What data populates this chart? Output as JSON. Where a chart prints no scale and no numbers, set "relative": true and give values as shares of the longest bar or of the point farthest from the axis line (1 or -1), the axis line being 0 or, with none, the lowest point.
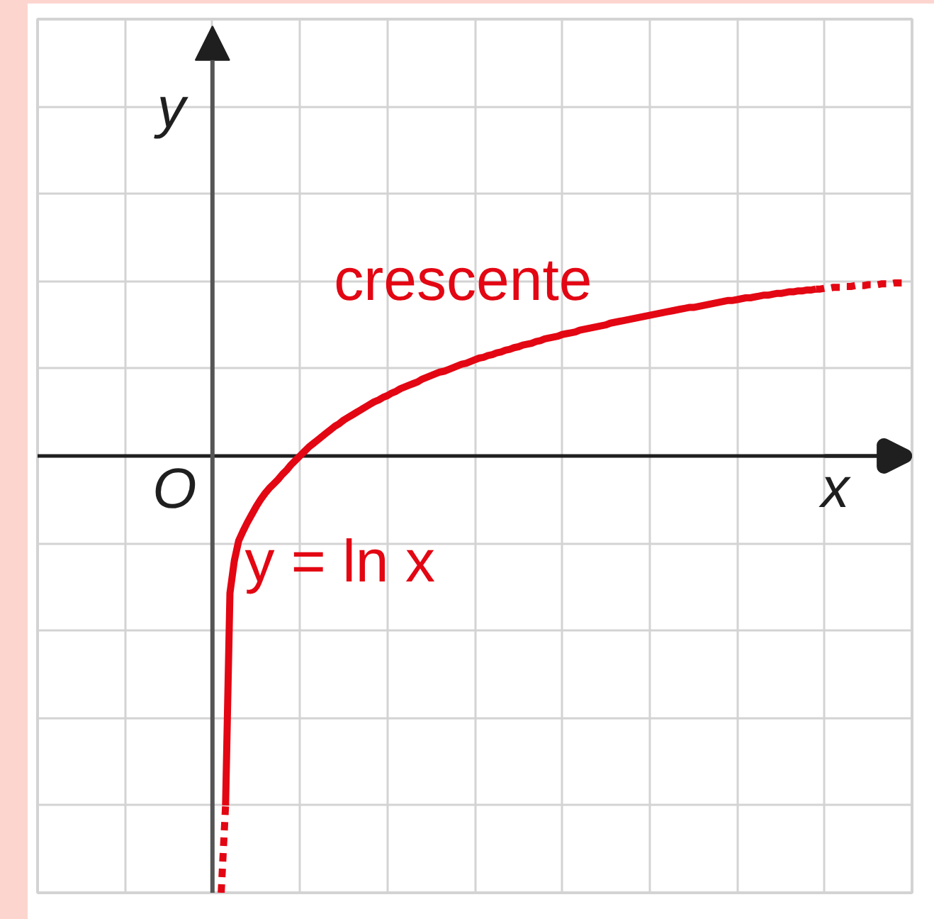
{
  "chart_data": {
    "type": "line",
    "relative": true,
    "grid": true,
    "xlabel": "x",
    "ylabel": "y",
    "annotations": [
      "crescente",
      "O"
    ],
    "categories": [
      null,
      null,
      null,
      null,
      null,
      null,
      null,
      null,
      null,
      null,
      null,
      null,
      null,
      null,
      null,
      null,
      null,
      null,
      null,
      null,
      null,
      null,
      null,
      null,
      null,
      null,
      null,
      null,
      null,
      null,
      null,
      null,
      null,
      null,
      null,
      null,
      null,
      null,
      null,
      null,
      null,
      null,
      null,
      null,
      null,
      null,
      null,
      null,
      null,
      null,
      null,
      null,
      null,
      null,
      null,
      null,
      null,
      null,
      null,
      null,
      null,
      null,
      null,
      null,
      null,
      null,
      null,
      null,
      null,
      null,
      null,
      null,
      null,
      null,
      null,
      null,
      null,
      null,
      null,
      null,
      null,
      null,
      null,
      null,
      null,
      null,
      null,
      null,
      null,
      null,
      null,
      null,
      null,
      null,
      null,
      null,
      null,
      null,
      null,
      null,
      null,
      null,
      null,
      null,
      null,
      null,
      null,
      null,
      null,
      null,
      null,
      null,
      null,
      null,
      null,
      null,
      null,
      null,
      null,
      null,
      null,
      null,
      null,
      null,
      null,
      null,
      null,
      null,
      null,
      null,
      null,
      null,
      null,
      null,
      null,
      null,
      null,
      null,
      null,
      null,
      null,
      null,
      null,
      null,
      null,
      null,
      null,
      null,
      null,
      null,
      null,
      null,
      null,
      null,
      null,
      null,
      null
    ],
    "series": [
      {
        "name": "y = ln x",
        "color": "#e30613",
        "line_style": "solid",
        "values": [
          null,
          -0.8,
          -0.314,
          -0.24,
          -0.194,
          -0.172,
          -0.152,
          -0.134,
          -0.116,
          -0.1,
          -0.086,
          -0.074,
          -0.064,
          -0.054,
          -0.042,
          -0.032,
          -0.02,
          -0.01,
          0,
          0.01,
          0.02,
          0.028,
          0.036,
          0.044,
          0.052,
          0.06,
          0.068,
          0.074,
          0.082,
          0.088,
          0.094,
          0.1,
          0.106,
          0.112,
          0.118,
          0.124,
          0.128,
          0.134,
          0.138,
          0.144,
          0.148,
          0.154,
          0.158,
          0.162,
          0.166,
          0.17,
          0.176,
          0.18,
          0.184,
          0.188,
          0.192,
          0.194,
          0.198,
          0.202,
          0.206,
          0.21,
          0.212,
          0.216,
          0.22,
          0.224,
          0.226,
          0.23,
          0.232,
          0.236,
          0.238,
          0.242,
          0.244,
          0.248,
          0.25,
          0.254,
          0.256,
          0.258,
          0.262,
          0.264,
          0.268,
          0.27,
          0.272,
          0.274,
          0.278,
          0.28,
          0.282,
          0.284,
          0.288,
          0.29,
          0.292,
          0.294,
          0.296,
          0.298,
          0.3,
          0.304,
          0.306,
          0.308,
          0.31,
          0.312,
          0.314,
          0.316,
          0.318,
          0.32,
          0.322,
          0.324,
          0.326,
          0.328,
          0.33,
          0.332,
          0.334,
          0.336,
          0.338,
          0.34,
          0.34,
          0.342,
          0.344,
          0.346,
          0.348,
          0.35,
          0.352,
          0.354,
          0.356,
          0.356,
          0.358,
          0.36,
          0.362,
          0.362,
          0.364,
          0.366,
          0.368,
          0.368,
          0.37,
          0.372,
          0.372,
          0.374,
          0.376,
          0.376,
          0.378,
          0.378,
          0.38,
          0.38,
          0.382,
          null,
          null,
          null,
          null,
          null,
          null,
          null,
          null,
          null,
          null,
          null,
          null,
          null,
          null,
          null,
          null,
          null,
          null,
          null,
          null
        ]
      },
      {
        "color": "#e30613",
        "line_style": "dotted",
        "values": [
          -1,
          -0.8,
          null,
          null,
          null,
          null,
          null,
          null,
          null,
          null,
          null,
          null,
          null,
          null,
          null,
          null,
          null,
          null,
          null,
          null,
          null,
          null,
          null,
          null,
          null,
          null,
          null,
          null,
          null,
          null,
          null,
          null,
          null,
          null,
          null,
          null,
          null,
          null,
          null,
          null,
          null,
          null,
          null,
          null,
          null,
          null,
          null,
          null,
          null,
          null,
          null,
          null,
          null,
          null,
          null,
          null,
          null,
          null,
          null,
          null,
          null,
          null,
          null,
          null,
          null,
          null,
          null,
          null,
          null,
          null,
          null,
          null,
          null,
          null,
          null,
          null,
          null,
          null,
          null,
          null,
          null,
          null,
          null,
          null,
          null,
          null,
          null,
          null,
          null,
          null,
          null,
          null,
          null,
          null,
          null,
          null,
          null,
          null,
          null,
          null,
          null,
          null,
          null,
          null,
          null,
          null,
          null,
          null,
          null,
          null,
          null,
          null,
          null,
          null,
          null,
          null,
          null,
          null,
          null,
          null,
          null,
          null,
          null,
          null,
          null,
          null,
          null,
          null,
          null,
          null,
          null,
          null,
          null,
          null,
          null,
          null,
          0.382,
          0.382,
          0.384,
          0.384,
          0.386,
          0.386,
          0.386,
          0.388,
          0.388,
          0.39,
          0.39,
          0.39,
          0.392,
          0.392,
          0.392,
          0.394,
          0.394,
          0.394,
          0.396,
          0.396,
          0.396
        ]
      }
    ]
  }
}
